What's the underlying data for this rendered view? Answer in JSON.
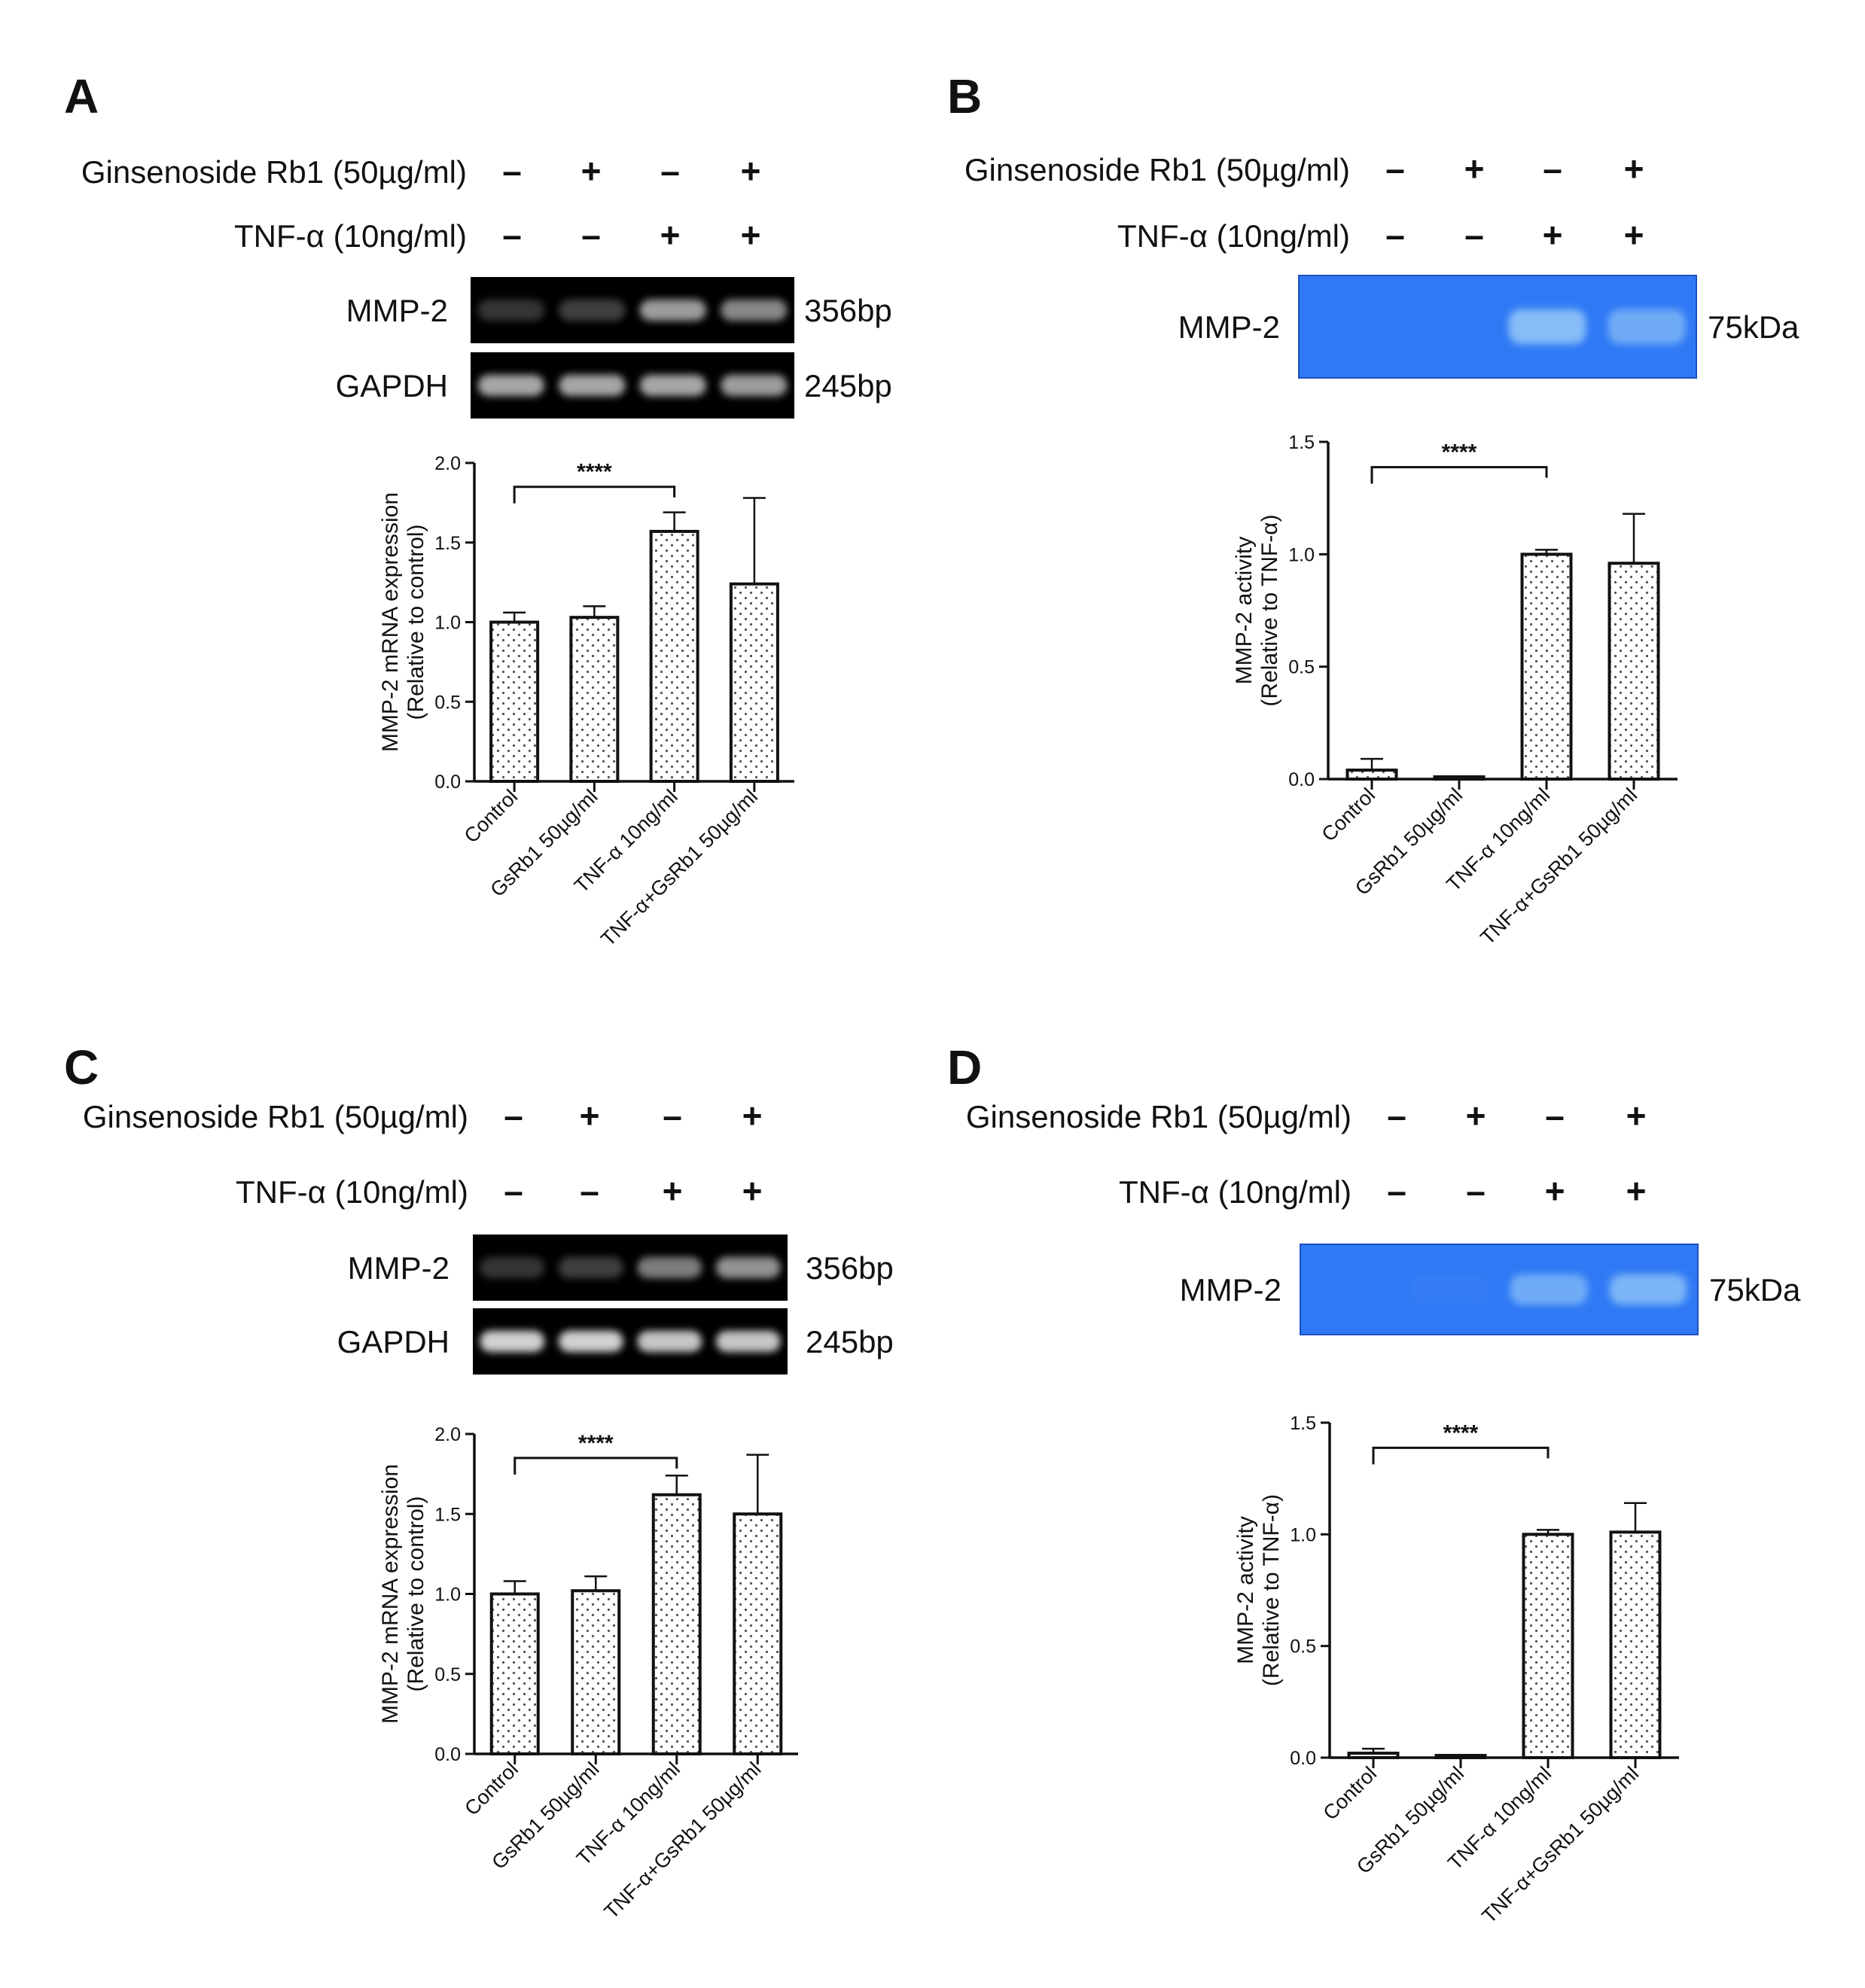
{
  "colors": {
    "ink": "#111111",
    "bar_fill": "#ffffff",
    "bar_dots": "#555555",
    "gel_background": "#000000",
    "gel_band": "#d0d0d0",
    "zymogram_background": "#2f79f5",
    "zymogram_band": "#9ccff8"
  },
  "panels": [
    {
      "letter": "A",
      "treatments": [
        {
          "label": "Ginsenoside Rb1 (50µg/ml)",
          "signs": [
            "–",
            "+",
            "–",
            "+"
          ]
        },
        {
          "label": "TNF-α (10ng/ml)",
          "signs": [
            "–",
            "–",
            "+",
            "+"
          ]
        }
      ],
      "blot": {
        "type": "gel",
        "rows": [
          {
            "label": "MMP-2",
            "size": "356bp",
            "intensities": [
              0.25,
              0.3,
              0.75,
              0.65
            ]
          },
          {
            "label": "GAPDH",
            "size": "245bp",
            "intensities": [
              0.8,
              0.8,
              0.8,
              0.75
            ]
          }
        ]
      },
      "chart_data": {
        "type": "bar",
        "categories": [
          "Control",
          "GsRb1 50µg/ml",
          "TNF-α 10ng/ml",
          "TNF-α+GsRb1 50µg/ml"
        ],
        "values": [
          1.0,
          1.03,
          1.57,
          1.24
        ],
        "errors": [
          0.06,
          0.07,
          0.12,
          0.54
        ],
        "ylabel_lines": [
          "MMP-2 mRNA expression",
          "(Relative to control)"
        ],
        "ylim": [
          0,
          2.0
        ],
        "yticks": [
          0.0,
          0.5,
          1.0,
          1.5,
          2.0
        ],
        "significance": {
          "from": 0,
          "to": 2,
          "label": "****"
        }
      }
    },
    {
      "letter": "B",
      "treatments": [
        {
          "label": "Ginsenoside Rb1 (50µg/ml)",
          "signs": [
            "–",
            "+",
            "–",
            "+"
          ]
        },
        {
          "label": "TNF-α (10ng/ml)",
          "signs": [
            "–",
            "–",
            "+",
            "+"
          ]
        }
      ],
      "blot": {
        "type": "zymogram",
        "rows": [
          {
            "label": "MMP-2",
            "size": "75kDa",
            "intensities": [
              0.0,
              0.0,
              0.8,
              0.6
            ]
          }
        ]
      },
      "chart_data": {
        "type": "bar",
        "categories": [
          "Control",
          "GsRb1 50µg/ml",
          "TNF-α 10ng/ml",
          "TNF-α+GsRb1 50µg/ml"
        ],
        "values": [
          0.04,
          0.01,
          1.0,
          0.96
        ],
        "errors": [
          0.05,
          0.0,
          0.02,
          0.22
        ],
        "ylabel_lines": [
          "MMP-2 activity",
          "(Relative to TNF-α)"
        ],
        "ylim": [
          0,
          1.5
        ],
        "yticks": [
          0.0,
          0.5,
          1.0,
          1.5
        ],
        "significance": {
          "from": 0,
          "to": 2,
          "label": "****"
        }
      }
    },
    {
      "letter": "C",
      "treatments": [
        {
          "label": "Ginsenoside Rb1 (50µg/ml)",
          "signs": [
            "–",
            "+",
            "–",
            "+"
          ]
        },
        {
          "label": "TNF-α (10ng/ml)",
          "signs": [
            "–",
            "–",
            "+",
            "+"
          ]
        }
      ],
      "blot": {
        "type": "gel",
        "rows": [
          {
            "label": "MMP-2",
            "size": "356bp",
            "intensities": [
              0.25,
              0.3,
              0.6,
              0.7
            ]
          },
          {
            "label": "GAPDH",
            "size": "245bp",
            "intensities": [
              1.0,
              1.0,
              0.95,
              0.95
            ]
          }
        ]
      },
      "chart_data": {
        "type": "bar",
        "categories": [
          "Control",
          "GsRb1 50µg/ml",
          "TNF-α 10ng/ml",
          "TNF-α+GsRb1 50µg/ml"
        ],
        "values": [
          1.0,
          1.02,
          1.62,
          1.5
        ],
        "errors": [
          0.08,
          0.09,
          0.12,
          0.37
        ],
        "ylabel_lines": [
          "MMP-2 mRNA expression",
          "(Relative to control)"
        ],
        "ylim": [
          0,
          2.0
        ],
        "yticks": [
          0.0,
          0.5,
          1.0,
          1.5,
          2.0
        ],
        "significance": {
          "from": 0,
          "to": 2,
          "label": "****"
        }
      }
    },
    {
      "letter": "D",
      "treatments": [
        {
          "label": "Ginsenoside Rb1 (50µg/ml)",
          "signs": [
            "–",
            "+",
            "–",
            "+"
          ]
        },
        {
          "label": "TNF-α (10ng/ml)",
          "signs": [
            "–",
            "–",
            "+",
            "+"
          ]
        }
      ],
      "blot": {
        "type": "zymogram",
        "rows": [
          {
            "label": "MMP-2",
            "size": "75kDa",
            "intensities": [
              0.0,
              0.05,
              0.6,
              0.7
            ]
          }
        ]
      },
      "chart_data": {
        "type": "bar",
        "categories": [
          "Control",
          "GsRb1 50µg/ml",
          "TNF-α 10ng/ml",
          "TNF-α+GsRb1 50µg/ml"
        ],
        "values": [
          0.02,
          0.01,
          1.0,
          1.01
        ],
        "errors": [
          0.02,
          0.0,
          0.02,
          0.13
        ],
        "ylabel_lines": [
          "MMP-2 activity",
          "(Relative to TNF-α)"
        ],
        "ylim": [
          0,
          1.5
        ],
        "yticks": [
          0.0,
          0.5,
          1.0,
          1.5
        ],
        "significance": {
          "from": 0,
          "to": 2,
          "label": "****"
        }
      }
    }
  ]
}
